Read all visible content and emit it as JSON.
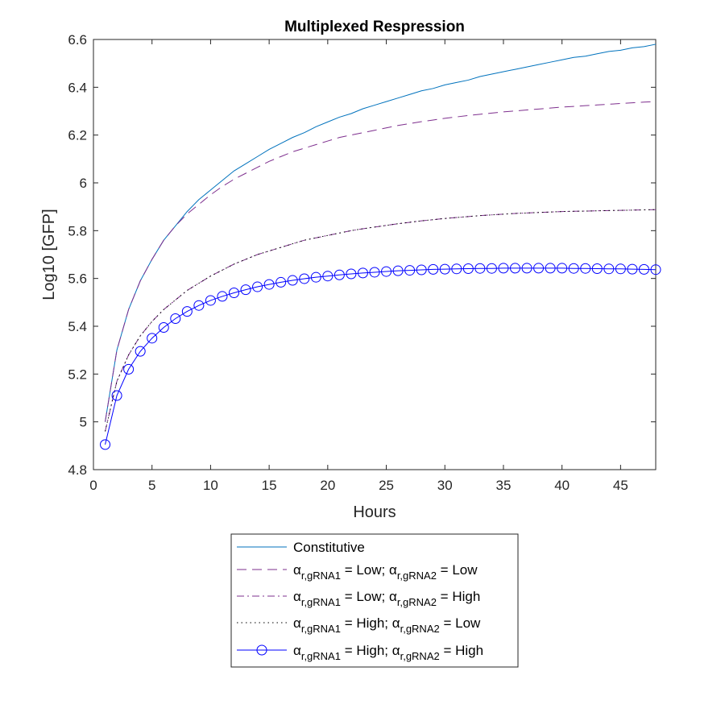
{
  "chart_data": {
    "type": "line",
    "title": "Multiplexed Respression",
    "xlabel": "Hours",
    "ylabel": "Log10 [GFP]",
    "xlim": [
      0,
      48
    ],
    "ylim": [
      4.8,
      6.6
    ],
    "xticks": [
      0,
      5,
      10,
      15,
      20,
      25,
      30,
      35,
      40,
      45
    ],
    "yticks": [
      4.8,
      5.0,
      5.2,
      5.4,
      5.6,
      5.8,
      6.0,
      6.2,
      6.4,
      6.6
    ],
    "xtick_labels": [
      "0",
      "5",
      "10",
      "15",
      "20",
      "25",
      "30",
      "35",
      "40",
      "45"
    ],
    "ytick_labels": [
      "4.8",
      "5",
      "5.2",
      "5.4",
      "5.6",
      "5.8",
      "6",
      "6.2",
      "6.4",
      "6.6"
    ],
    "grid": false,
    "legend_position": "below",
    "x": [
      1,
      2,
      3,
      4,
      5,
      6,
      7,
      8,
      9,
      10,
      11,
      12,
      13,
      14,
      15,
      16,
      17,
      18,
      19,
      20,
      21,
      22,
      23,
      24,
      25,
      26,
      27,
      28,
      29,
      30,
      31,
      32,
      33,
      34,
      35,
      36,
      37,
      38,
      39,
      40,
      41,
      42,
      43,
      44,
      45,
      46,
      47,
      48
    ],
    "series": [
      {
        "name": "Constitutive",
        "color": "#0072BD",
        "dash": "solid",
        "marker": "none",
        "values": [
          5.0,
          5.3,
          5.47,
          5.59,
          5.68,
          5.76,
          5.82,
          5.88,
          5.93,
          5.97,
          6.01,
          6.05,
          6.08,
          6.11,
          6.14,
          6.165,
          6.19,
          6.21,
          6.235,
          6.255,
          6.275,
          6.29,
          6.31,
          6.325,
          6.34,
          6.355,
          6.37,
          6.385,
          6.395,
          6.41,
          6.42,
          6.43,
          6.445,
          6.455,
          6.465,
          6.475,
          6.485,
          6.495,
          6.505,
          6.515,
          6.525,
          6.53,
          6.54,
          6.55,
          6.555,
          6.565,
          6.57,
          6.58
        ]
      },
      {
        "name": "Low; Low",
        "color": "#7E2F8E",
        "dash": "long",
        "marker": "none",
        "values": [
          5.0,
          5.3,
          5.47,
          5.59,
          5.68,
          5.76,
          5.82,
          5.87,
          5.91,
          5.95,
          5.985,
          6.015,
          6.04,
          6.065,
          6.09,
          6.11,
          6.13,
          6.145,
          6.16,
          6.175,
          6.19,
          6.2,
          6.21,
          6.22,
          6.23,
          6.24,
          6.248,
          6.256,
          6.263,
          6.27,
          6.276,
          6.282,
          6.287,
          6.292,
          6.297,
          6.301,
          6.305,
          6.309,
          6.313,
          6.317,
          6.32,
          6.323,
          6.326,
          6.329,
          6.332,
          6.335,
          6.338,
          6.34
        ]
      },
      {
        "name": "Low; High",
        "color": "#7E2F8E",
        "dash": "dashdot",
        "marker": "none",
        "values": [
          4.96,
          5.17,
          5.28,
          5.36,
          5.42,
          5.47,
          5.51,
          5.55,
          5.58,
          5.61,
          5.635,
          5.66,
          5.68,
          5.7,
          5.715,
          5.73,
          5.745,
          5.76,
          5.77,
          5.78,
          5.79,
          5.8,
          5.808,
          5.815,
          5.822,
          5.829,
          5.835,
          5.841,
          5.846,
          5.851,
          5.855,
          5.859,
          5.863,
          5.866,
          5.869,
          5.872,
          5.874,
          5.876,
          5.878,
          5.88,
          5.881,
          5.882,
          5.883,
          5.884,
          5.885,
          5.886,
          5.887,
          5.888
        ]
      },
      {
        "name": "High; Low",
        "color": "#000000",
        "dash": "dotted",
        "marker": "none",
        "values": [
          4.96,
          5.17,
          5.28,
          5.36,
          5.42,
          5.47,
          5.51,
          5.55,
          5.58,
          5.61,
          5.635,
          5.66,
          5.68,
          5.7,
          5.715,
          5.73,
          5.745,
          5.76,
          5.77,
          5.78,
          5.79,
          5.8,
          5.808,
          5.815,
          5.822,
          5.829,
          5.835,
          5.841,
          5.846,
          5.851,
          5.855,
          5.859,
          5.863,
          5.866,
          5.869,
          5.872,
          5.874,
          5.876,
          5.878,
          5.88,
          5.881,
          5.882,
          5.883,
          5.884,
          5.885,
          5.886,
          5.887,
          5.888
        ]
      },
      {
        "name": "High; High",
        "color": "#0000FF",
        "dash": "solid",
        "marker": "circle",
        "values": [
          4.905,
          5.11,
          5.22,
          5.295,
          5.35,
          5.395,
          5.432,
          5.462,
          5.487,
          5.508,
          5.525,
          5.54,
          5.553,
          5.565,
          5.575,
          5.584,
          5.592,
          5.599,
          5.605,
          5.61,
          5.615,
          5.619,
          5.623,
          5.626,
          5.629,
          5.632,
          5.634,
          5.636,
          5.638,
          5.639,
          5.64,
          5.641,
          5.642,
          5.642,
          5.643,
          5.643,
          5.643,
          5.643,
          5.643,
          5.643,
          5.642,
          5.642,
          5.641,
          5.64,
          5.64,
          5.639,
          5.638,
          5.637
        ]
      }
    ]
  },
  "legend": {
    "items": [
      {
        "text": "Constitutive"
      },
      {
        "a1": "α",
        "s1": "r,gRNA1",
        "m": " = Low; ",
        "a2": "α",
        "s2": "r,gRNA2",
        "e": " = Low"
      },
      {
        "a1": "α",
        "s1": "r,gRNA1",
        "m": " = Low; ",
        "a2": "α",
        "s2": "r,gRNA2",
        "e": " = High"
      },
      {
        "a1": "α",
        "s1": "r,gRNA1",
        "m": " = High; ",
        "a2": "α",
        "s2": "r,gRNA2",
        "e": " = Low"
      },
      {
        "a1": "α",
        "s1": "r,gRNA1",
        "m": " = High; ",
        "a2": "α",
        "s2": "r,gRNA2",
        "e": " = High"
      }
    ]
  }
}
